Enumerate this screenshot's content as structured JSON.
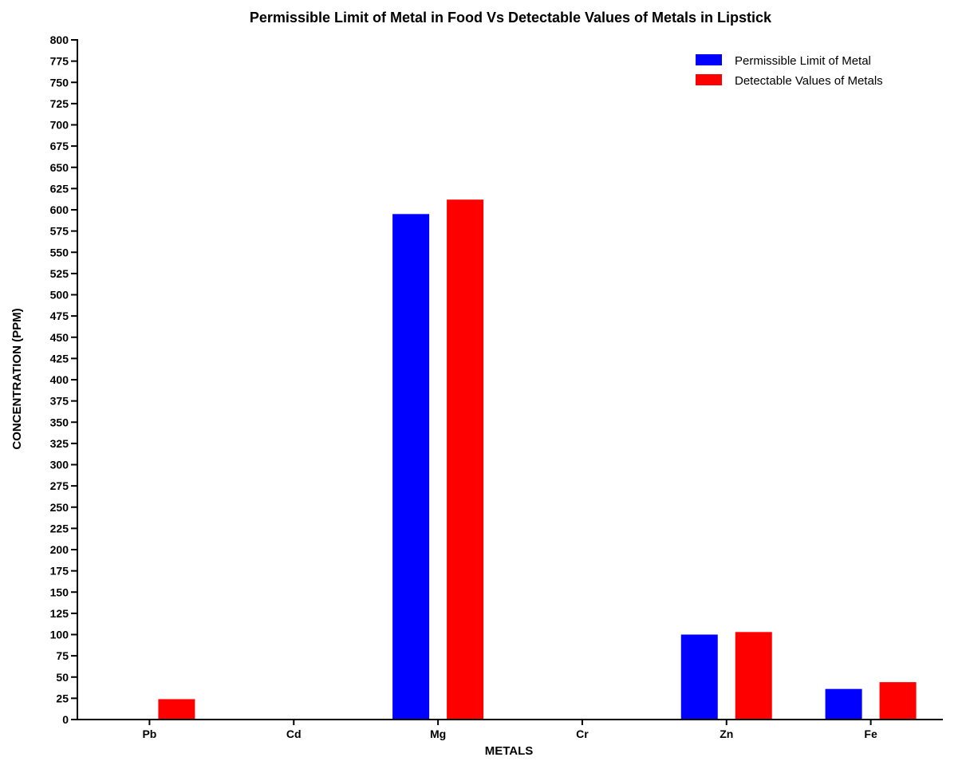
{
  "chart_data": {
    "type": "bar",
    "title": "Permissible Limit of Metal in Food Vs Detectable Values of Metals in Lipstick",
    "xlabel": "METALS",
    "ylabel": "CONCENTRATION (PPM)",
    "ylim": [
      0,
      800
    ],
    "y_tick_step": 25,
    "grid": false,
    "legend_position": "top-right",
    "categories": [
      "Pb",
      "Cd",
      "Mg",
      "Cr",
      "Zn",
      "Fe"
    ],
    "series": [
      {
        "name": "Permissible Limit of Metal",
        "color": "#0000ff",
        "values": [
          0,
          0,
          595,
          0,
          100,
          36
        ]
      },
      {
        "name": "Detectable Values of Metals",
        "color": "#ff0000",
        "values": [
          24,
          0,
          612,
          0,
          103,
          44
        ]
      }
    ]
  }
}
